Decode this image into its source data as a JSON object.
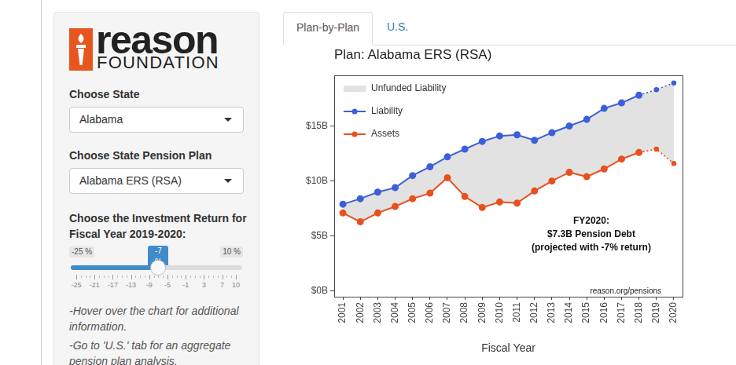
{
  "sidebar": {
    "logo": {
      "word": "reason",
      "subtitle": "FOUNDATION"
    },
    "state_label": "Choose State",
    "state": "Alabama",
    "plan_label": "Choose State Pension Plan",
    "plan": "Alabama ERS (RSA)",
    "return_label": "Choose the Investment Return for Fiscal Year 2019-2020:",
    "slider": {
      "min": -25,
      "max": 10,
      "value": -7,
      "min_label": "-25 %",
      "max_label": "10 %",
      "value_label": "-7 %",
      "ticks": [
        -25,
        -21,
        -17,
        -13,
        -9,
        -5,
        -1,
        3,
        7,
        10
      ]
    },
    "notes": [
      "-Hover over the chart for additional information.",
      "-Go to 'U.S.' tab for an aggregate pension plan analysis."
    ]
  },
  "tabs": [
    {
      "label": "Plan-by-Plan",
      "active": true
    },
    {
      "label": "U.S.",
      "active": false
    }
  ],
  "chart_data": {
    "type": "line",
    "title": "Plan: Alabama ERS (RSA)",
    "xlabel": "Fiscal Year",
    "categories": [
      "2001",
      "2002",
      "2003",
      "2004",
      "2005",
      "2006",
      "2007",
      "2008",
      "2009",
      "2010",
      "2011",
      "2012",
      "2013",
      "2014",
      "2015",
      "2016",
      "2017",
      "2018",
      "2019",
      "2020"
    ],
    "series": [
      {
        "name": "Unfunded Liability",
        "type": "area",
        "stacked": true,
        "color": "#e2e2e2",
        "values": [
          0.8,
          2.1,
          1.9,
          1.7,
          2.1,
          2.4,
          1.9,
          4.3,
          6.0,
          6.0,
          6.2,
          4.6,
          4.4,
          4.2,
          5.2,
          5.5,
          5.1,
          5.2,
          5.4,
          7.3
        ]
      },
      {
        "name": "Liability",
        "color": "#3d5fd9",
        "marker": "circle",
        "line_style": "solid",
        "values": [
          7.9,
          8.4,
          9.0,
          9.4,
          10.5,
          11.3,
          12.2,
          12.9,
          13.6,
          14.1,
          14.2,
          13.7,
          14.4,
          15.0,
          15.6,
          16.6,
          17.1,
          17.8,
          null,
          null
        ]
      },
      {
        "name": "Liability",
        "color": "#3d5fd9",
        "marker": "circle",
        "line_style": "dotted",
        "values": [
          null,
          null,
          null,
          null,
          null,
          null,
          null,
          null,
          null,
          null,
          null,
          null,
          null,
          null,
          null,
          null,
          null,
          17.8,
          18.3,
          18.9
        ]
      },
      {
        "name": "Assets",
        "color": "#e8501e",
        "marker": "circle",
        "line_style": "solid",
        "values": [
          7.1,
          6.3,
          7.1,
          7.7,
          8.4,
          8.9,
          10.3,
          8.6,
          7.6,
          8.1,
          8.0,
          9.1,
          10.0,
          10.8,
          10.4,
          11.1,
          12.0,
          12.6,
          null,
          null
        ]
      },
      {
        "name": "Assets",
        "color": "#e8501e",
        "marker": "circle",
        "line_style": "dotted",
        "values": [
          null,
          null,
          null,
          null,
          null,
          null,
          null,
          null,
          null,
          null,
          null,
          null,
          null,
          null,
          null,
          null,
          null,
          12.6,
          12.9,
          11.6
        ]
      }
    ],
    "ylim": [
      -0.5,
      19.6
    ],
    "yticks": [
      {
        "value": 0,
        "label": "$0B"
      },
      {
        "value": 5,
        "label": "$5B"
      },
      {
        "value": 10,
        "label": "$10B"
      },
      {
        "value": 15,
        "label": "$15B"
      }
    ],
    "grid": false,
    "legend": "upper left",
    "annotations": [
      "FY2020:",
      "$7.3B Pension Debt",
      "(projected with -7% return)"
    ],
    "source": "reason.org/pensions"
  }
}
